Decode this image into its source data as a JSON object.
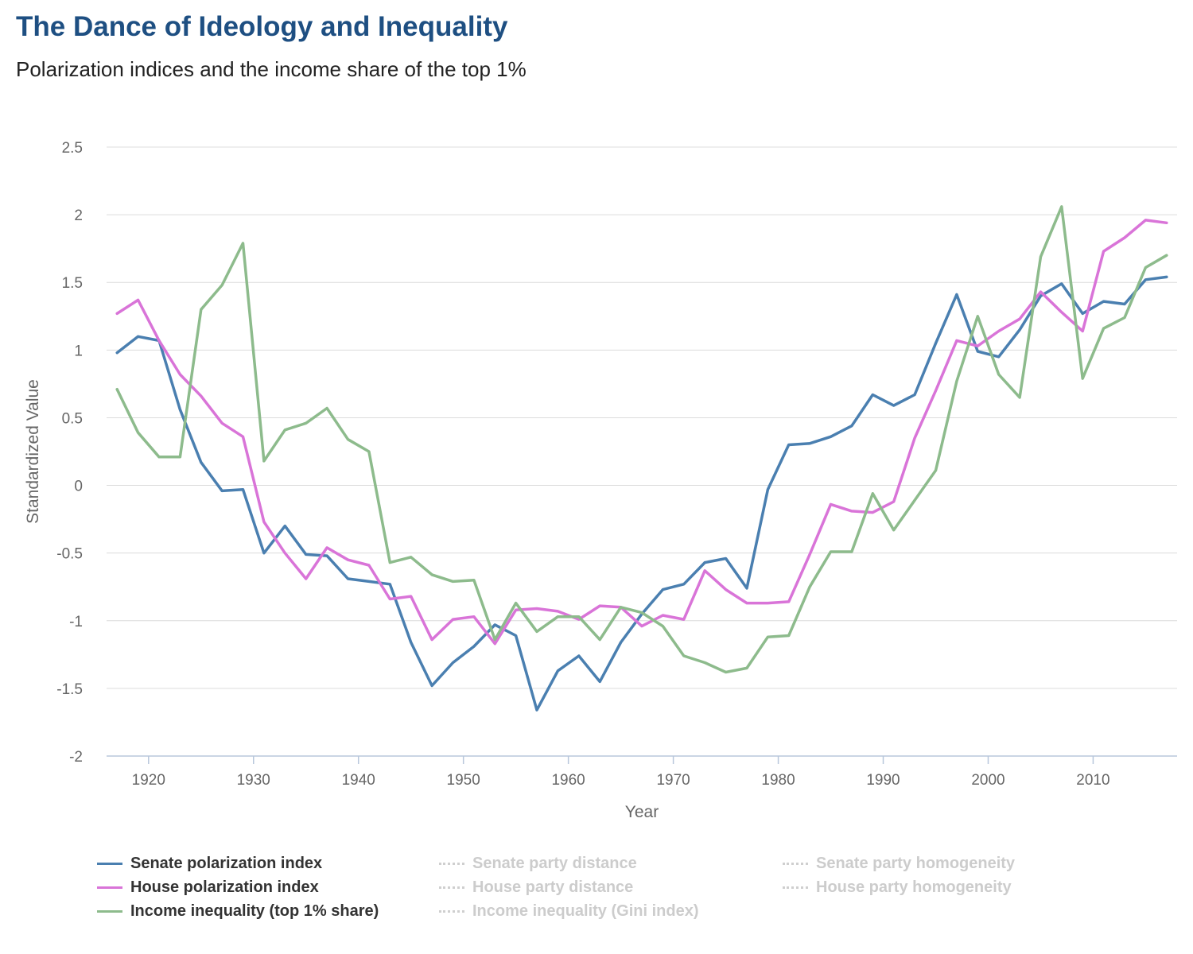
{
  "title": "The Dance of Ideology and Inequality",
  "subtitle": "Polarization indices and the income share of the top 1%",
  "chart_data": {
    "type": "line",
    "xlabel": "Year",
    "ylabel": "Standardized Value",
    "xlim": [
      1916,
      2018
    ],
    "ylim": [
      -2,
      2.5
    ],
    "xticks": [
      1920,
      1930,
      1940,
      1950,
      1960,
      1970,
      1980,
      1990,
      2000,
      2010
    ],
    "yticks": [
      -2,
      -1.5,
      -1,
      -0.5,
      0,
      0.5,
      1,
      1.5,
      2,
      2.5
    ],
    "ytick_labels": [
      "-2",
      "-1.5",
      "-1",
      "-0.5",
      "0",
      "0.5",
      "1",
      "1.5",
      "2",
      "2.5"
    ],
    "grid": "horizontal",
    "legend_position": "bottom",
    "x": [
      1917,
      1919,
      1921,
      1923,
      1925,
      1927,
      1929,
      1931,
      1933,
      1935,
      1937,
      1939,
      1941,
      1943,
      1945,
      1947,
      1949,
      1951,
      1953,
      1955,
      1957,
      1959,
      1961,
      1963,
      1965,
      1967,
      1969,
      1971,
      1973,
      1975,
      1977,
      1979,
      1981,
      1983,
      1985,
      1987,
      1989,
      1991,
      1993,
      1995,
      1997,
      1999,
      2001,
      2003,
      2005,
      2007,
      2009,
      2011,
      2013,
      2015,
      2017
    ],
    "series": [
      {
        "name": "Senate polarization index",
        "color": "#4a7fb0",
        "active": true,
        "values": [
          0.98,
          1.1,
          1.07,
          0.56,
          0.17,
          -0.04,
          -0.03,
          -0.5,
          -0.3,
          -0.51,
          -0.52,
          -0.69,
          -0.71,
          -0.73,
          -1.16,
          -1.48,
          -1.31,
          -1.19,
          -1.03,
          -1.11,
          -1.66,
          -1.37,
          -1.26,
          -1.45,
          -1.16,
          -0.95,
          -0.77,
          -0.73,
          -0.57,
          -0.54,
          -0.76,
          -0.03,
          0.3,
          0.31,
          0.36,
          0.44,
          0.67,
          0.59,
          0.67,
          1.05,
          1.41,
          0.99,
          0.95,
          1.15,
          1.4,
          1.49,
          1.27,
          1.36,
          1.34,
          1.52,
          1.54
        ]
      },
      {
        "name": "House polarization index",
        "color": "#d974d8",
        "active": true,
        "values": [
          1.27,
          1.37,
          1.07,
          0.82,
          0.66,
          0.46,
          0.36,
          -0.27,
          -0.5,
          -0.69,
          -0.46,
          -0.55,
          -0.59,
          -0.84,
          -0.82,
          -1.14,
          -0.99,
          -0.97,
          -1.17,
          -0.92,
          -0.91,
          -0.93,
          -0.99,
          -0.89,
          -0.9,
          -1.04,
          -0.96,
          -0.99,
          -0.63,
          -0.77,
          -0.87,
          -0.87,
          -0.86,
          -0.51,
          -0.14,
          -0.19,
          -0.2,
          -0.12,
          0.35,
          0.7,
          1.07,
          1.03,
          1.14,
          1.23,
          1.43,
          1.28,
          1.14,
          1.73,
          1.83,
          1.96,
          1.94
        ]
      },
      {
        "name": "Income inequality (top 1% share)",
        "color": "#8dbb8c",
        "active": true,
        "values": [
          0.71,
          0.39,
          0.21,
          0.21,
          1.3,
          1.48,
          1.79,
          0.18,
          0.41,
          0.46,
          0.57,
          0.34,
          0.25,
          -0.57,
          -0.53,
          -0.66,
          -0.71,
          -0.7,
          -1.14,
          -0.87,
          -1.08,
          -0.97,
          -0.97,
          -1.14,
          -0.9,
          -0.94,
          -1.04,
          -1.26,
          -1.31,
          -1.38,
          -1.35,
          -1.12,
          -1.11,
          -0.75,
          -0.49,
          -0.49,
          -0.06,
          -0.33,
          -0.11,
          0.11,
          0.77,
          1.25,
          0.82,
          0.65,
          1.69,
          2.06,
          0.79,
          1.16,
          1.24,
          1.61,
          1.7
        ]
      }
    ],
    "inactive_series": [
      "Senate party distance",
      "House party distance",
      "Income inequality (Gini index)",
      "Senate party homogeneity",
      "House party homogeneity"
    ]
  },
  "legend": [
    {
      "label": "Senate polarization index",
      "color": "#4a7fb0",
      "style": "solid",
      "active": true
    },
    {
      "label": "House polarization index",
      "color": "#d974d8",
      "style": "solid",
      "active": true
    },
    {
      "label": "Income inequality (top 1% share)",
      "color": "#8dbb8c",
      "style": "solid",
      "active": true
    },
    {
      "label": "Senate party distance",
      "color": "#cfcfcf",
      "style": "dotted",
      "active": false
    },
    {
      "label": "House party distance",
      "color": "#cfcfcf",
      "style": "dotted",
      "active": false
    },
    {
      "label": "Income inequality (Gini index)",
      "color": "#cfcfcf",
      "style": "dotted",
      "active": false
    },
    {
      "label": "Senate party homogeneity",
      "color": "#cfcfcf",
      "style": "dotted",
      "active": false
    },
    {
      "label": "House party homogeneity",
      "color": "#cfcfcf",
      "style": "dotted",
      "active": false
    }
  ]
}
